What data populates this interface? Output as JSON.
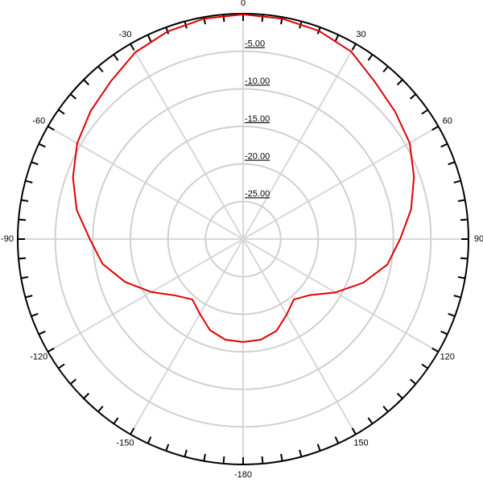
{
  "chart_data": {
    "type": "polar",
    "theta_zero": "top",
    "theta_direction": "clockwise",
    "x": [
      -180,
      -170,
      -160,
      -150,
      -140,
      -130,
      -120,
      -110,
      -100,
      -90,
      -80,
      -70,
      -60,
      -50,
      -40,
      -30,
      -20,
      -10,
      0,
      10,
      20,
      30,
      40,
      50,
      60,
      70,
      80,
      90,
      100,
      110,
      120,
      130,
      140,
      150,
      160,
      170,
      180
    ],
    "values": [
      -16.3,
      -16.4,
      -17.1,
      -18.5,
      -19.5,
      -18.3,
      -15.9,
      -13.3,
      -11.0,
      -9.6,
      -7.5,
      -5.9,
      -4.5,
      -3.5,
      -2.6,
      -1.3,
      -0.6,
      -0.2,
      -0.1,
      -0.2,
      -0.5,
      -1.2,
      -2.7,
      -3.6,
      -4.4,
      -5.8,
      -7.3,
      -9.1,
      -10.5,
      -13.0,
      -15.8,
      -18.4,
      -19.5,
      -18.4,
      -17.0,
      -16.4,
      -16.3
    ],
    "color": "#e00000",
    "rlim": [
      -30,
      0
    ],
    "rticks": [
      {
        "value": -25,
        "label": "-25.00"
      },
      {
        "value": -20,
        "label": "-20.00"
      },
      {
        "value": -15,
        "label": "-15.00"
      },
      {
        "value": -10,
        "label": "-10.00"
      },
      {
        "value": -5,
        "label": "-5.00"
      }
    ],
    "thetaticks": [
      0,
      30,
      60,
      90,
      120,
      150,
      -180,
      -150,
      -120,
      -90,
      -60,
      -30
    ],
    "grid": true
  }
}
